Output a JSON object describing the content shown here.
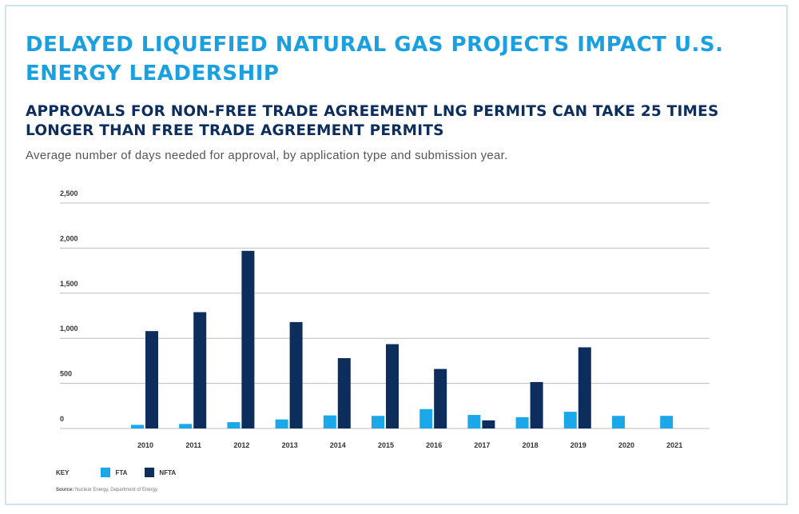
{
  "title": "DELAYED LIQUEFIED NATURAL GAS PROJECTS IMPACT U.S. ENERGY LEADERSHIP",
  "subtitle": "APPROVALS FOR NON-FREE TRADE AGREEMENT LNG PERMITS CAN TAKE 25 TIMES LONGER THAN FREE TRADE AGREEMENT PERMITS",
  "description": "Average number of days needed for approval, by application type and submission year.",
  "legend": {
    "key_label": "KEY",
    "fta_label": "FTA",
    "nfta_label": "NFTA"
  },
  "source": {
    "label": "Source:",
    "text": "Nuclear Energy, Department of Energy"
  },
  "colors": {
    "fta": "#1aa8e8",
    "nfta": "#0d2e5c",
    "grid": "#bdbdbd"
  },
  "chart_data": {
    "type": "bar",
    "title": "APPROVALS FOR NON-FREE TRADE AGREEMENT LNG PERMITS CAN TAKE 25 TIMES LONGER THAN FREE TRADE AGREEMENT PERMITS",
    "xlabel": "",
    "ylabel": "",
    "ylim": [
      0,
      2500
    ],
    "yticks": [
      0,
      500,
      1000,
      1500,
      2000,
      2500
    ],
    "ytick_labels": [
      "0",
      "500",
      "1,000",
      "1,500",
      "2,000",
      "2,500"
    ],
    "categories": [
      "2010",
      "2011",
      "2012",
      "2013",
      "2014",
      "2015",
      "2016",
      "2017",
      "2018",
      "2019",
      "2020",
      "2021"
    ],
    "series": [
      {
        "name": "FTA",
        "values": [
          40,
          50,
          70,
          100,
          145,
          140,
          215,
          150,
          125,
          185,
          140,
          140
        ]
      },
      {
        "name": "NFTA",
        "values": [
          1080,
          1290,
          1970,
          1180,
          780,
          935,
          660,
          90,
          515,
          900,
          null,
          null
        ]
      }
    ],
    "grid": true,
    "legend_position": "bottom-left"
  }
}
